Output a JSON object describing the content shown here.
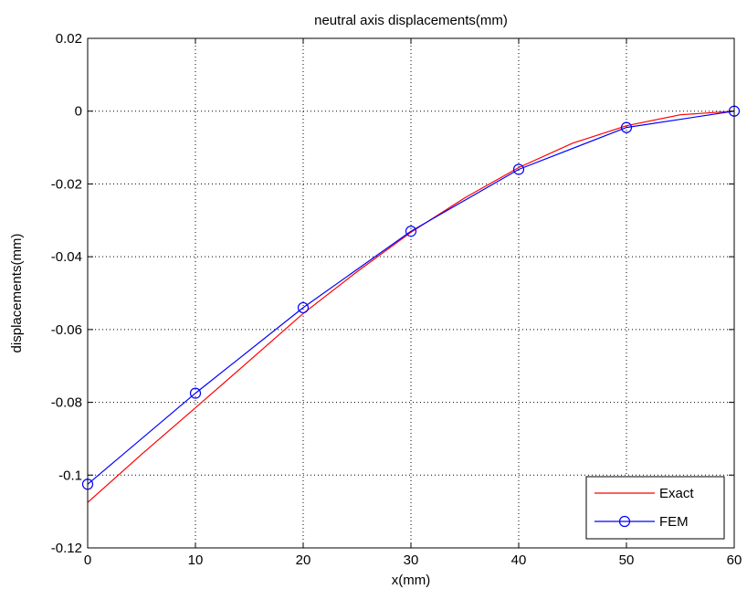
{
  "chart_data": {
    "type": "line",
    "title": "neutral axis displacements(mm)",
    "xlabel": "x(mm)",
    "ylabel": "displacements(mm)",
    "xlim": [
      0,
      60
    ],
    "ylim": [
      -0.12,
      0.02
    ],
    "xticks": [
      0,
      10,
      20,
      30,
      40,
      50,
      60
    ],
    "yticks": [
      0.02,
      0,
      -0.02,
      -0.04,
      -0.06,
      -0.08,
      -0.1,
      -0.12
    ],
    "xtick_labels": [
      "0",
      "10",
      "20",
      "30",
      "40",
      "50",
      "60"
    ],
    "ytick_labels": [
      "0.02",
      "0",
      "-0.02",
      "-0.04",
      "-0.06",
      "-0.08",
      "-0.1",
      "-0.12"
    ],
    "grid": true,
    "legend_position": "bottom-right",
    "series": [
      {
        "name": "Exact",
        "color": "#ff0000",
        "marker": "none",
        "x": [
          0,
          5,
          10,
          15,
          20,
          25,
          30,
          35,
          40,
          45,
          50,
          55,
          60
        ],
        "y": [
          -0.1075,
          -0.0943,
          -0.0815,
          -0.0686,
          -0.0556,
          -0.0441,
          -0.0333,
          -0.0238,
          -0.0155,
          -0.0088,
          -0.004,
          -0.001,
          0
        ]
      },
      {
        "name": "FEM",
        "color": "#0000ff",
        "marker": "circle",
        "x": [
          0,
          10,
          20,
          30,
          40,
          50,
          60
        ],
        "y": [
          -0.1025,
          -0.0775,
          -0.054,
          -0.033,
          -0.016,
          -0.0045,
          0
        ]
      }
    ]
  }
}
